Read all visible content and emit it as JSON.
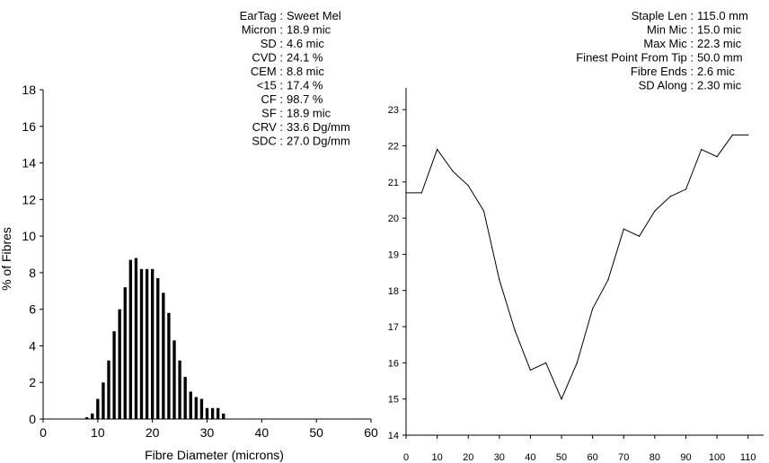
{
  "stats_left": [
    {
      "label": "EarTag :",
      "value": "Sweet Mel"
    },
    {
      "label": "Micron :",
      "value": "18.9 mic"
    },
    {
      "label": "SD :",
      "value": "4.6 mic"
    },
    {
      "label": "CVD :",
      "value": "24.1 %"
    },
    {
      "label": "CEM :",
      "value": "8.8 mic"
    },
    {
      "label": "<15 :",
      "value": "17.4 %"
    },
    {
      "label": "CF :",
      "value": "98.7 %"
    },
    {
      "label": "SF :",
      "value": "18.9 mic"
    },
    {
      "label": "CRV :",
      "value": "33.6 Dg/mm"
    },
    {
      "label": "SDC :",
      "value": "27.0 Dg/mm"
    }
  ],
  "stats_right": [
    {
      "label": "Staple Len :",
      "value": "115.0 mm"
    },
    {
      "label": "Min Mic :",
      "value": "15.0 mic"
    },
    {
      "label": "Max Mic :",
      "value": "22.3 mic"
    },
    {
      "label": "Finest Point From Tip :",
      "value": "50.0 mm"
    },
    {
      "label": "Fibre Ends :",
      "value": "2.6 mic"
    },
    {
      "label": "SD Along :",
      "value": "2.30 mic"
    }
  ],
  "chart_data": [
    {
      "type": "bar",
      "title": "",
      "xlabel": "Fibre Diameter (microns)",
      "ylabel": "% of Fibres",
      "xlim": [
        0,
        60
      ],
      "ylim": [
        0,
        18
      ],
      "xticks": [
        0,
        10,
        20,
        30,
        40,
        50,
        60
      ],
      "yticks": [
        0,
        2,
        4,
        6,
        8,
        10,
        12,
        14,
        16,
        18
      ],
      "bin_width": 1,
      "x": [
        8,
        9,
        10,
        11,
        12,
        13,
        14,
        15,
        16,
        17,
        18,
        19,
        20,
        21,
        22,
        23,
        24,
        25,
        26,
        27,
        28,
        29,
        30,
        31,
        32,
        33
      ],
      "values": [
        0.1,
        0.3,
        1.1,
        2.0,
        3.2,
        4.8,
        6.0,
        7.2,
        8.7,
        8.8,
        8.2,
        8.2,
        8.2,
        7.7,
        6.9,
        5.8,
        4.3,
        3.2,
        2.3,
        1.5,
        1.2,
        1.1,
        0.6,
        0.6,
        0.6,
        0.3
      ],
      "grid": false
    },
    {
      "type": "line",
      "title": "",
      "xlabel": "",
      "ylabel": "",
      "xlim": [
        0,
        115
      ],
      "ylim": [
        14,
        23.6
      ],
      "xticks": [
        0,
        10,
        20,
        30,
        40,
        50,
        60,
        70,
        80,
        90,
        100,
        110
      ],
      "yticks": [
        14,
        15,
        16,
        17,
        18,
        19,
        20,
        21,
        22,
        23
      ],
      "x": [
        0,
        5,
        10,
        15,
        20,
        25,
        30,
        35,
        40,
        45,
        50,
        55,
        60,
        65,
        70,
        75,
        80,
        85,
        90,
        95,
        100,
        105,
        110
      ],
      "y": [
        20.7,
        20.7,
        21.9,
        21.3,
        20.9,
        20.2,
        18.3,
        16.9,
        15.8,
        16.0,
        15.0,
        16.0,
        17.5,
        18.3,
        19.7,
        19.5,
        20.2,
        20.6,
        20.8,
        21.9,
        21.7,
        22.3,
        22.3
      ],
      "grid": false
    }
  ]
}
